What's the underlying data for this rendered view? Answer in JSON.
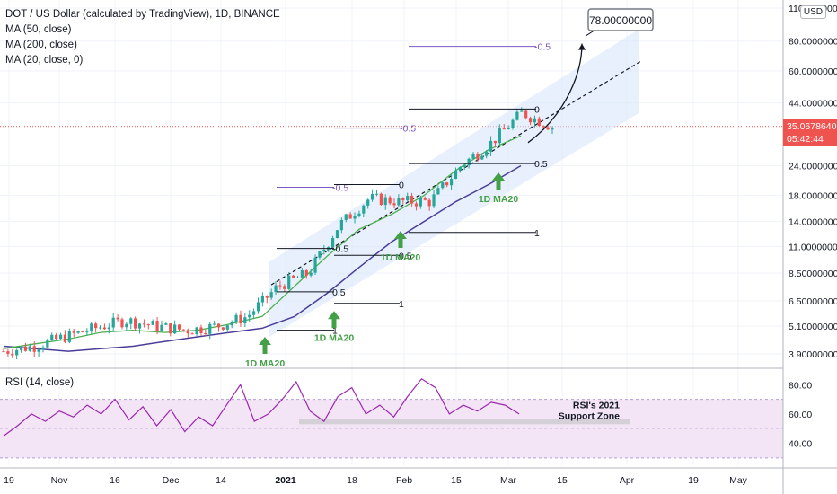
{
  "header": {
    "symbol_title": "DOT / US Dollar (calculated by TradingView), 1D, BINANCE",
    "indicators": [
      "MA (50, close)",
      "MA (200, close)",
      "MA (20, close, 0)"
    ],
    "currency_badge": "USD",
    "rsi_title": "RSI (14, close)"
  },
  "price_tag": {
    "value": "35.06786401",
    "countdown": "05:42:44",
    "color": "#ef5350"
  },
  "colors": {
    "up": "#26a69a",
    "down": "#ef5350",
    "ma20": "#4caf50",
    "ma50": "#4a3d9a",
    "channel": "#d6e4fb",
    "rsi_line": "#9c27b0",
    "rsi_band": "#f3e5f5",
    "support_zone": "#c8c8cc",
    "arrow": "#43a047",
    "fib_neg": "#7e57c2"
  },
  "chart_data": [
    {
      "type": "candlestick",
      "title": "DOT / US Dollar (calculated by TradingView), 1D, BINANCE",
      "y_scale": "log",
      "y_ticks": [
        "110.00000000",
        "80.00000000",
        "60.00000000",
        "44.00000000",
        "35.06786401",
        "24.00000000",
        "18.00000000",
        "14.00000000",
        "11.00000000",
        "8.50000000",
        "6.50000000",
        "5.10000000",
        "3.90000000"
      ],
      "x_ticks": [
        "19",
        "Nov",
        "16",
        "Dec",
        "14",
        "2021",
        "18",
        "Feb",
        "15",
        "Mar",
        "15",
        "Apr",
        "19",
        "May"
      ],
      "series": [
        {
          "name": "MA (50, close)",
          "values": [
            4.2,
            4.1,
            4.0,
            4.1,
            4.2,
            4.4,
            4.6,
            4.8,
            5.0,
            5.6,
            7.0,
            9.0,
            11.5,
            14.0,
            17.0,
            20.0,
            24.0
          ]
        },
        {
          "name": "MA (20, close, 0)",
          "values": [
            4.1,
            4.3,
            4.5,
            4.8,
            4.9,
            4.8,
            4.9,
            5.2,
            5.6,
            7.5,
            10.0,
            13.0,
            15.0,
            18.0,
            23.0,
            28.0,
            32.0
          ]
        }
      ],
      "price_path": [
        4.0,
        4.2,
        4.6,
        5.0,
        5.4,
        5.1,
        4.9,
        5.1,
        5.6,
        7.5,
        8.5,
        13.5,
        17.5,
        17.0,
        17.0,
        24.0,
        30.0,
        40.0,
        35.0
      ]
    },
    {
      "type": "line",
      "title": "RSI (14, close)",
      "y_ticks": [
        "80.00",
        "60.00",
        "40.00"
      ],
      "ylim": [
        25,
        90
      ],
      "values": [
        45,
        52,
        60,
        55,
        62,
        58,
        66,
        60,
        70,
        56,
        65,
        52,
        63,
        48,
        58,
        52,
        66,
        80,
        55,
        60,
        70,
        82,
        62,
        55,
        72,
        78,
        60,
        66,
        58,
        72,
        84,
        78,
        60,
        66,
        62,
        68,
        66,
        60
      ]
    }
  ],
  "annotations": {
    "target_price": "78.00000000",
    "ma20_label": "1D MA20",
    "fib_labels": [
      "-0.5",
      "0",
      "0.5",
      "1"
    ],
    "rsi_support_zone": "RSI's 2021\nSupport Zone",
    "rsi_support_line1": "RSI's 2021",
    "rsi_support_line2": "Support Zone"
  }
}
